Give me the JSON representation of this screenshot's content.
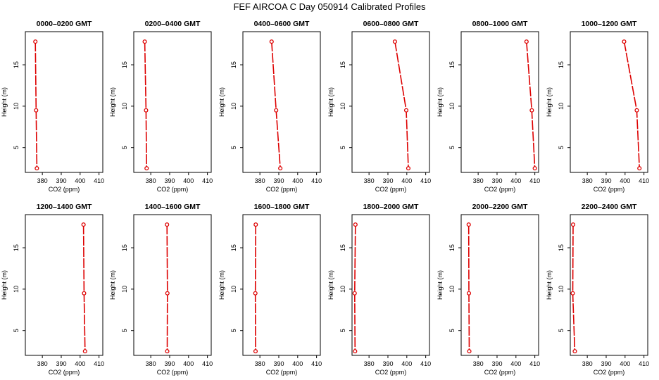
{
  "figure": {
    "title": "FEF AIRCOA C  Day 050914  Calibrated Profiles"
  },
  "style": {
    "line_color": "#dd0000",
    "axis_color": "#000000",
    "background": "#ffffff"
  },
  "chart_data": [
    {
      "type": "line",
      "title": "0000–0200 GMT",
      "xlabel": "CO2 (ppm)",
      "ylabel": "Height (m)",
      "xticks": [
        "380",
        "390",
        "400",
        "410"
      ],
      "yticks": [
        "5",
        "10",
        "15"
      ],
      "xlim": [
        371,
        412
      ],
      "ylim": [
        2,
        19
      ],
      "grid": false,
      "series": [
        {
          "x": [
            376.3,
            376.7,
            377.1
          ],
          "y": [
            17.8,
            9.5,
            2.5
          ]
        }
      ]
    },
    {
      "type": "line",
      "title": "0200–0400 GMT",
      "xlabel": "CO2 (ppm)",
      "ylabel": "Height (m)",
      "xticks": [
        "380",
        "390",
        "400",
        "410"
      ],
      "yticks": [
        "5",
        "10",
        "15"
      ],
      "xlim": [
        371,
        412
      ],
      "ylim": [
        2,
        19
      ],
      "grid": false,
      "series": [
        {
          "x": [
            376.8,
            377.5,
            377.8
          ],
          "y": [
            17.8,
            9.5,
            2.5
          ]
        }
      ]
    },
    {
      "type": "line",
      "title": "0400–0600 GMT",
      "xlabel": "CO2 (ppm)",
      "ylabel": "Height (m)",
      "xticks": [
        "380",
        "390",
        "400",
        "410"
      ],
      "yticks": [
        "5",
        "10",
        "15"
      ],
      "xlim": [
        371,
        412
      ],
      "ylim": [
        2,
        19
      ],
      "grid": false,
      "series": [
        {
          "x": [
            386.2,
            388.6,
            390.8
          ],
          "y": [
            17.8,
            9.5,
            2.5
          ]
        }
      ]
    },
    {
      "type": "line",
      "title": "0600–0800 GMT",
      "xlabel": "CO2 (ppm)",
      "ylabel": "Height (m)",
      "xticks": [
        "380",
        "390",
        "400",
        "410"
      ],
      "yticks": [
        "5",
        "10",
        "15"
      ],
      "xlim": [
        371,
        412
      ],
      "ylim": [
        2,
        19
      ],
      "grid": false,
      "series": [
        {
          "x": [
            393.7,
            399.7,
            400.8
          ],
          "y": [
            17.8,
            9.5,
            2.5
          ]
        }
      ]
    },
    {
      "type": "line",
      "title": "0800–1000 GMT",
      "xlabel": "CO2 (ppm)",
      "ylabel": "Height (m)",
      "xticks": [
        "380",
        "390",
        "400",
        "410"
      ],
      "yticks": [
        "5",
        "10",
        "15"
      ],
      "xlim": [
        371,
        412
      ],
      "ylim": [
        2,
        19
      ],
      "grid": false,
      "series": [
        {
          "x": [
            405.6,
            408.4,
            410.0
          ],
          "y": [
            17.8,
            9.5,
            2.5
          ]
        }
      ]
    },
    {
      "type": "line",
      "title": "1000–1200 GMT",
      "xlabel": "CO2 (ppm)",
      "ylabel": "Height (m)",
      "xticks": [
        "380",
        "390",
        "400",
        "410"
      ],
      "yticks": [
        "5",
        "10",
        "15"
      ],
      "xlim": [
        371,
        412
      ],
      "ylim": [
        2,
        19
      ],
      "grid": false,
      "series": [
        {
          "x": [
            399.5,
            406.2,
            407.6
          ],
          "y": [
            17.8,
            9.5,
            2.5
          ]
        }
      ]
    },
    {
      "type": "line",
      "title": "1200–1400 GMT",
      "xlabel": "CO2 (ppm)",
      "ylabel": "Height (m)",
      "xticks": [
        "380",
        "390",
        "400",
        "410"
      ],
      "yticks": [
        "5",
        "10",
        "15"
      ],
      "xlim": [
        371,
        412
      ],
      "ylim": [
        2,
        19
      ],
      "grid": false,
      "series": [
        {
          "x": [
            401.8,
            402.1,
            402.6
          ],
          "y": [
            17.8,
            9.5,
            2.5
          ]
        }
      ]
    },
    {
      "type": "line",
      "title": "1400–1600 GMT",
      "xlabel": "CO2 (ppm)",
      "ylabel": "Height (m)",
      "xticks": [
        "380",
        "390",
        "400",
        "410"
      ],
      "yticks": [
        "5",
        "10",
        "15"
      ],
      "xlim": [
        371,
        412
      ],
      "ylim": [
        2,
        19
      ],
      "grid": false,
      "series": [
        {
          "x": [
            388.6,
            388.8,
            388.7
          ],
          "y": [
            17.8,
            9.5,
            2.5
          ]
        }
      ]
    },
    {
      "type": "line",
      "title": "1600–1800 GMT",
      "xlabel": "CO2 (ppm)",
      "ylabel": "Height (m)",
      "xticks": [
        "380",
        "390",
        "400",
        "410"
      ],
      "yticks": [
        "5",
        "10",
        "15"
      ],
      "xlim": [
        371,
        412
      ],
      "ylim": [
        2,
        19
      ],
      "grid": false,
      "series": [
        {
          "x": [
            377.8,
            377.6,
            377.7
          ],
          "y": [
            17.8,
            9.5,
            2.5
          ]
        }
      ]
    },
    {
      "type": "line",
      "title": "1800–2000 GMT",
      "xlabel": "CO2 (ppm)",
      "ylabel": "Height (m)",
      "xticks": [
        "380",
        "390",
        "400",
        "410"
      ],
      "yticks": [
        "5",
        "10",
        "15"
      ],
      "xlim": [
        371,
        412
      ],
      "ylim": [
        2,
        19
      ],
      "grid": false,
      "series": [
        {
          "x": [
            372.8,
            372.4,
            372.6
          ],
          "y": [
            17.8,
            9.5,
            2.5
          ]
        }
      ]
    },
    {
      "type": "line",
      "title": "2000–2200 GMT",
      "xlabel": "CO2 (ppm)",
      "ylabel": "Height (m)",
      "xticks": [
        "380",
        "390",
        "400",
        "410"
      ],
      "yticks": [
        "5",
        "10",
        "15"
      ],
      "xlim": [
        371,
        412
      ],
      "ylim": [
        2,
        19
      ],
      "grid": false,
      "series": [
        {
          "x": [
            375.0,
            375.1,
            375.3
          ],
          "y": [
            17.8,
            9.5,
            2.5
          ]
        }
      ]
    },
    {
      "type": "line",
      "title": "2200–2400 GMT",
      "xlabel": "CO2 (ppm)",
      "ylabel": "Height (m)",
      "xticks": [
        "380",
        "390",
        "400",
        "410"
      ],
      "yticks": [
        "5",
        "10",
        "15"
      ],
      "xlim": [
        371,
        412
      ],
      "ylim": [
        2,
        19
      ],
      "grid": false,
      "series": [
        {
          "x": [
            372.5,
            372.3,
            373.4
          ],
          "y": [
            17.8,
            9.5,
            2.5
          ]
        }
      ]
    }
  ]
}
